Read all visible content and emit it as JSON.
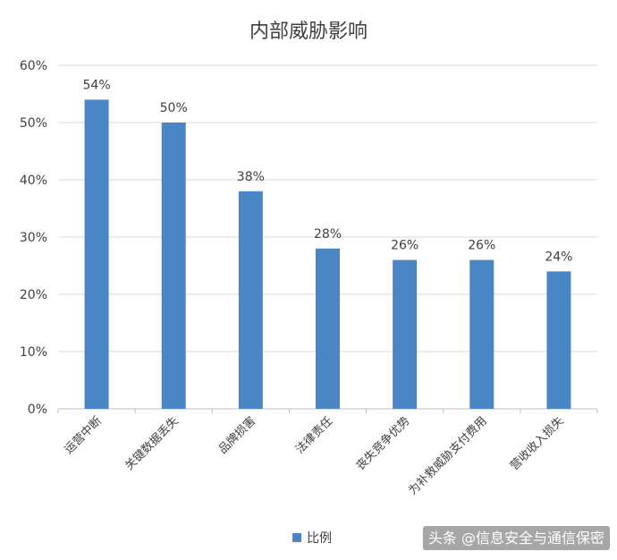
{
  "chart_data": {
    "type": "bar",
    "title": "内部威胁影响",
    "categories": [
      "运营中断",
      "关键数据丢失",
      "品牌损害",
      "法律责任",
      "丧失竞争优势",
      "为补救威胁支付费用",
      "营收收入损失"
    ],
    "series": [
      {
        "name": "比例",
        "values": [
          54,
          50,
          38,
          28,
          26,
          26,
          24
        ],
        "color": "#4a86c5"
      }
    ],
    "data_labels": [
      "54%",
      "50%",
      "38%",
      "28%",
      "26%",
      "26%",
      "24%"
    ],
    "y_ticks": [
      "0%",
      "10%",
      "20%",
      "30%",
      "40%",
      "50%",
      "60%"
    ],
    "ylim": [
      0,
      60
    ],
    "grid": true,
    "legend_position": "bottom"
  },
  "watermark": "头条 @信息安全与通信保密",
  "colors": {
    "bar": "#4a86c5",
    "grid": "#d9d9d9",
    "axis": "#bfbfbf",
    "text": "#404040"
  }
}
